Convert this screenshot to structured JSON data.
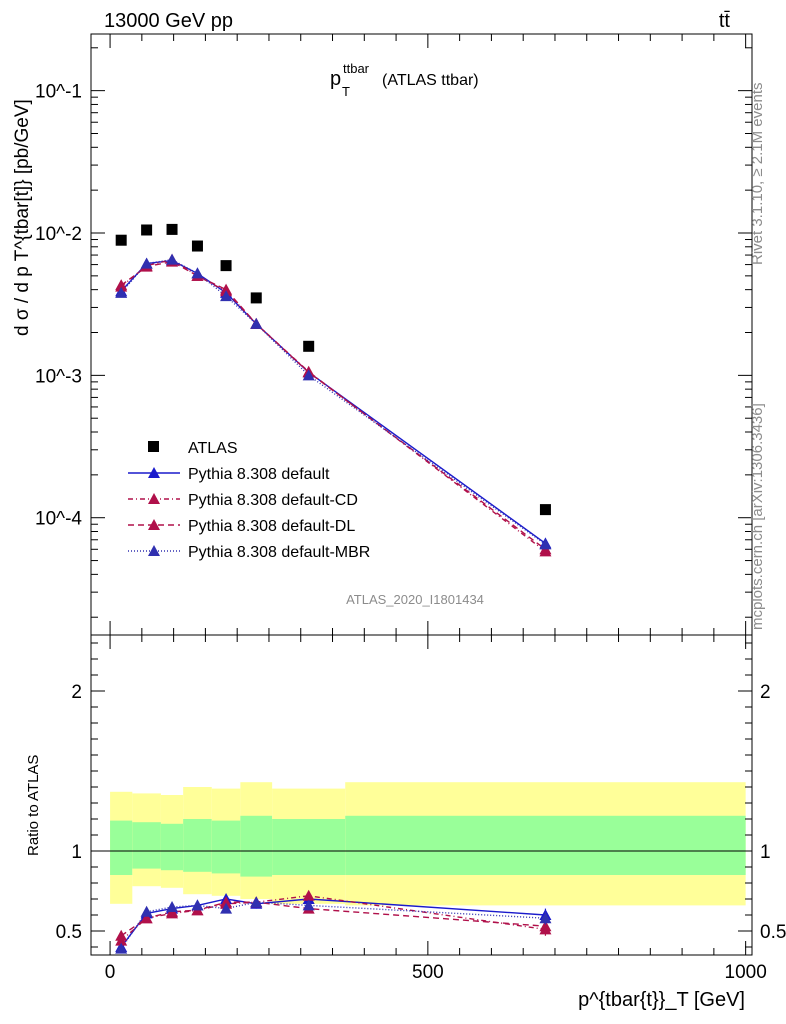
{
  "header": {
    "energy": "13000 GeV pp",
    "process": "tt̄",
    "rivet": "Rivet 3.1.10, ≥ 2.1M events",
    "mcplots": "mcplots.cern.ch [arXiv:1306.3436]",
    "analysis": "ATLAS_2020_I1801434"
  },
  "title": {
    "main": "p",
    "sup": "ttbar",
    "sub": "T",
    "rest": "(ATLAS ttbar)"
  },
  "axes": {
    "ylabel_top": "d σ / d p T^{tbar[t]} [pb/GeV]",
    "ylabel_bottom": "Ratio to ATLAS",
    "xlabel": "p^{tbar{t}}_T [GeV]",
    "x_ticks": [
      "0",
      "500",
      "1000"
    ],
    "y_ticks_top": [
      "10^-4",
      "10^-3",
      "10^-2",
      "10^-1"
    ],
    "y_ticks_bottom": [
      "0.5",
      "1",
      "2"
    ]
  },
  "legend": [
    {
      "label": "ATLAS",
      "color": "#000000",
      "marker": "square",
      "dash": ""
    },
    {
      "label": "Pythia 8.308 default",
      "color": "#1a1acc",
      "marker": "triangle",
      "dash": ""
    },
    {
      "label": "Pythia 8.308 default-CD",
      "color": "#b0104a",
      "marker": "triangle",
      "dash": "5,3,1,3"
    },
    {
      "label": "Pythia 8.308 default-DL",
      "color": "#b0104a",
      "marker": "triangle",
      "dash": "6,4"
    },
    {
      "label": "Pythia 8.308 default-MBR",
      "color": "#3030b0",
      "marker": "triangle",
      "dash": "1,2"
    }
  ],
  "chart_data": {
    "type": "line",
    "xscale": "linear",
    "yscale": "log",
    "xlim": [
      -30,
      1010
    ],
    "ylim": [
      1.5e-05,
      0.25
    ],
    "ratio_ylim": [
      0.35,
      2.35
    ],
    "bin_edges": [
      0,
      35,
      80,
      115,
      160,
      205,
      255,
      370,
      1000
    ],
    "x": [
      17.5,
      57.5,
      97.5,
      137.5,
      182.5,
      230,
      312.5,
      685
    ],
    "series": [
      {
        "name": "ATLAS",
        "values": [
          0.0089,
          0.0105,
          0.0106,
          0.0081,
          0.0059,
          0.0035,
          0.0016,
          0.000114
        ]
      },
      {
        "name": "Pythia 8.308 default",
        "values": [
          0.0039,
          0.0061,
          0.0064,
          0.0052,
          0.0038,
          0.0023,
          0.00105,
          6.6e-05
        ]
      },
      {
        "name": "Pythia 8.308 default-CD",
        "values": [
          0.0042,
          0.0059,
          0.0065,
          0.005,
          0.0039,
          0.0023,
          0.00106,
          5.8e-05
        ]
      },
      {
        "name": "Pythia 8.308 default-DL",
        "values": [
          0.0043,
          0.0058,
          0.0063,
          0.005,
          0.004,
          0.0023,
          0.00105,
          6e-05
        ]
      },
      {
        "name": "Pythia 8.308 default-MBR",
        "values": [
          0.0038,
          0.0061,
          0.0065,
          0.0052,
          0.0036,
          0.0023,
          0.001,
          6.5e-05
        ]
      }
    ],
    "ratio_series": [
      {
        "name": "Pythia 8.308 default",
        "values": [
          0.4,
          0.61,
          0.64,
          0.66,
          0.7,
          0.67,
          0.7,
          0.6
        ]
      },
      {
        "name": "Pythia 8.308 default-CD",
        "values": [
          0.44,
          0.58,
          0.61,
          0.63,
          0.67,
          0.68,
          0.72,
          0.51
        ]
      },
      {
        "name": "Pythia 8.308 default-DL",
        "values": [
          0.47,
          0.58,
          0.62,
          0.63,
          0.68,
          0.68,
          0.64,
          0.53
        ]
      },
      {
        "name": "Pythia 8.308 default-MBR",
        "values": [
          0.39,
          0.62,
          0.65,
          0.66,
          0.64,
          0.68,
          0.66,
          0.58
        ]
      }
    ],
    "ratio_errors": [
      0.03,
      0.02,
      0.02,
      0.02,
      0.02,
      0.03,
      0.03,
      0.04
    ],
    "band_yellow": [
      {
        "lo": 0.67,
        "hi": 1.37
      },
      {
        "lo": 0.78,
        "hi": 1.36
      },
      {
        "lo": 0.77,
        "hi": 1.35
      },
      {
        "lo": 0.73,
        "hi": 1.4
      },
      {
        "lo": 0.72,
        "hi": 1.39
      },
      {
        "lo": 0.7,
        "hi": 1.43
      },
      {
        "lo": 0.67,
        "hi": 1.39
      },
      {
        "lo": 0.66,
        "hi": 1.43
      }
    ],
    "band_green": [
      {
        "lo": 0.85,
        "hi": 1.19
      },
      {
        "lo": 0.89,
        "hi": 1.18
      },
      {
        "lo": 0.88,
        "hi": 1.17
      },
      {
        "lo": 0.87,
        "hi": 1.2
      },
      {
        "lo": 0.86,
        "hi": 1.19
      },
      {
        "lo": 0.84,
        "hi": 1.22
      },
      {
        "lo": 0.85,
        "hi": 1.2
      },
      {
        "lo": 0.85,
        "hi": 1.22
      }
    ]
  }
}
